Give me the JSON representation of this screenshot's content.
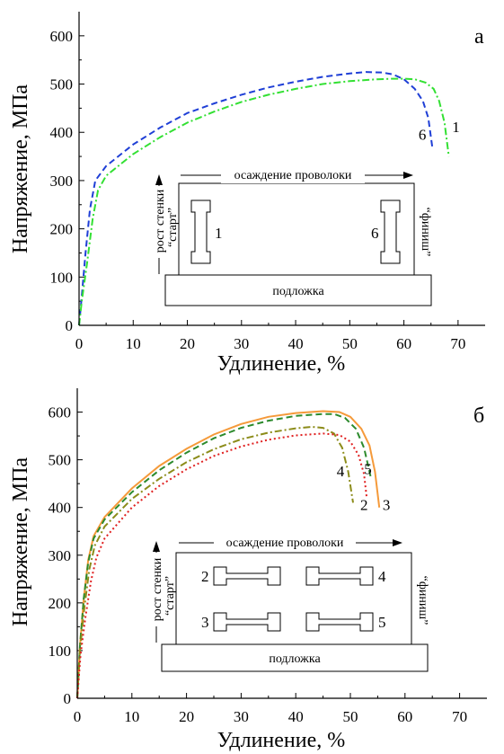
{
  "chart_data": [
    {
      "panel": "а",
      "type": "line",
      "xlabel": "Удлинение, %",
      "ylabel": "Напряжение, МПа",
      "xlim": [
        0,
        75
      ],
      "ylim": [
        0,
        650
      ],
      "xticks": [
        0,
        10,
        20,
        30,
        40,
        50,
        60,
        70
      ],
      "yticks": [
        0,
        100,
        200,
        300,
        400,
        500,
        600
      ],
      "series": [
        {
          "name": "6",
          "color": "#1f3fd6",
          "dash": "dashed",
          "x": [
            0,
            0.5,
            1.2,
            2,
            3,
            5,
            10,
            15,
            20,
            25,
            30,
            35,
            40,
            45,
            50,
            53,
            56,
            58,
            60,
            62,
            63.5,
            64.5,
            65.3
          ],
          "y": [
            0,
            60,
            150,
            240,
            300,
            330,
            375,
            410,
            440,
            460,
            478,
            493,
            505,
            515,
            522,
            525,
            524,
            520,
            510,
            490,
            465,
            430,
            365
          ]
        },
        {
          "name": "1",
          "color": "#33e033",
          "dash": "dashdot",
          "x": [
            0,
            0.5,
            1.5,
            2.5,
            3.5,
            5,
            10,
            15,
            20,
            25,
            30,
            35,
            40,
            45,
            50,
            55,
            58,
            60,
            62,
            64,
            65.5,
            66.5,
            67.5,
            68.3
          ],
          "y": [
            0,
            50,
            130,
            220,
            280,
            310,
            355,
            390,
            420,
            443,
            463,
            478,
            490,
            500,
            506,
            510,
            511,
            511,
            510,
            503,
            490,
            465,
            420,
            350
          ]
        }
      ],
      "curve_labels": [
        {
          "text": "6",
          "x": 63.4,
          "y": 385
        },
        {
          "text": "1",
          "x": 69.6,
          "y": 400
        }
      ],
      "inset": {
        "header": "осаждение проволоки",
        "side_label": "рост стенки",
        "start": "“старт”",
        "finish": "“финиш”",
        "substrate": "подложка",
        "numbers": [
          "1",
          "6"
        ]
      }
    },
    {
      "panel": "б",
      "type": "line",
      "xlabel": "Удлинение, %",
      "ylabel": "Напряжение, МПа",
      "xlim": [
        0,
        75
      ],
      "ylim": [
        0,
        650
      ],
      "xticks": [
        0,
        10,
        20,
        30,
        40,
        50,
        60,
        70
      ],
      "yticks": [
        0,
        100,
        200,
        300,
        400,
        500,
        600
      ],
      "series": [
        {
          "name": "3",
          "color": "#f59a3a",
          "dash": "solid",
          "x": [
            0,
            0.5,
            1.2,
            2,
            3,
            5,
            10,
            15,
            20,
            25,
            30,
            35,
            40,
            45,
            48,
            50,
            52,
            53.5,
            54.5,
            55.3
          ],
          "y": [
            0,
            110,
            210,
            290,
            340,
            380,
            440,
            487,
            523,
            553,
            575,
            590,
            598,
            602,
            600,
            590,
            565,
            530,
            475,
            400
          ]
        },
        {
          "name": "5",
          "color": "#2c8a2c",
          "dash": "dashed",
          "x": [
            0,
            0.5,
            1.2,
            2,
            3,
            5,
            10,
            15,
            20,
            25,
            30,
            35,
            40,
            45,
            47,
            49,
            51,
            52.5,
            53.8
          ],
          "y": [
            0,
            110,
            210,
            285,
            335,
            375,
            432,
            478,
            515,
            545,
            567,
            582,
            592,
            596,
            596,
            588,
            565,
            525,
            460
          ]
        },
        {
          "name": "4",
          "color": "#8c8c1a",
          "dash": "dashdot",
          "x": [
            0,
            0.5,
            1.3,
            2.2,
            3.2,
            5,
            10,
            15,
            20,
            25,
            30,
            35,
            40,
            43,
            45,
            47,
            48.5,
            49.6,
            50.5
          ],
          "y": [
            0,
            100,
            190,
            270,
            320,
            360,
            418,
            460,
            495,
            522,
            543,
            557,
            566,
            569,
            567,
            555,
            525,
            475,
            410
          ]
        },
        {
          "name": "2",
          "color": "#e02020",
          "dash": "dotted",
          "x": [
            0,
            0.6,
            1.5,
            2.5,
            3.5,
            5,
            10,
            15,
            20,
            25,
            30,
            35,
            40,
            45,
            48,
            50,
            51.5,
            52.5,
            53
          ],
          "y": [
            0,
            90,
            170,
            245,
            295,
            335,
            400,
            445,
            480,
            508,
            528,
            542,
            551,
            555,
            552,
            538,
            510,
            470,
            420
          ]
        }
      ],
      "curve_labels": [
        {
          "text": "4",
          "x": 48.2,
          "y": 465
        },
        {
          "text": "5",
          "x": 53.2,
          "y": 470
        },
        {
          "text": "2",
          "x": 52.5,
          "y": 395
        },
        {
          "text": "3",
          "x": 56.6,
          "y": 395
        }
      ],
      "inset": {
        "header": "осаждение проволоки",
        "side_label": "рост стенки",
        "start": "“старт”",
        "finish": "“финиш”",
        "substrate": "подложка",
        "numbers": [
          "2",
          "4",
          "3",
          "5"
        ]
      }
    }
  ]
}
